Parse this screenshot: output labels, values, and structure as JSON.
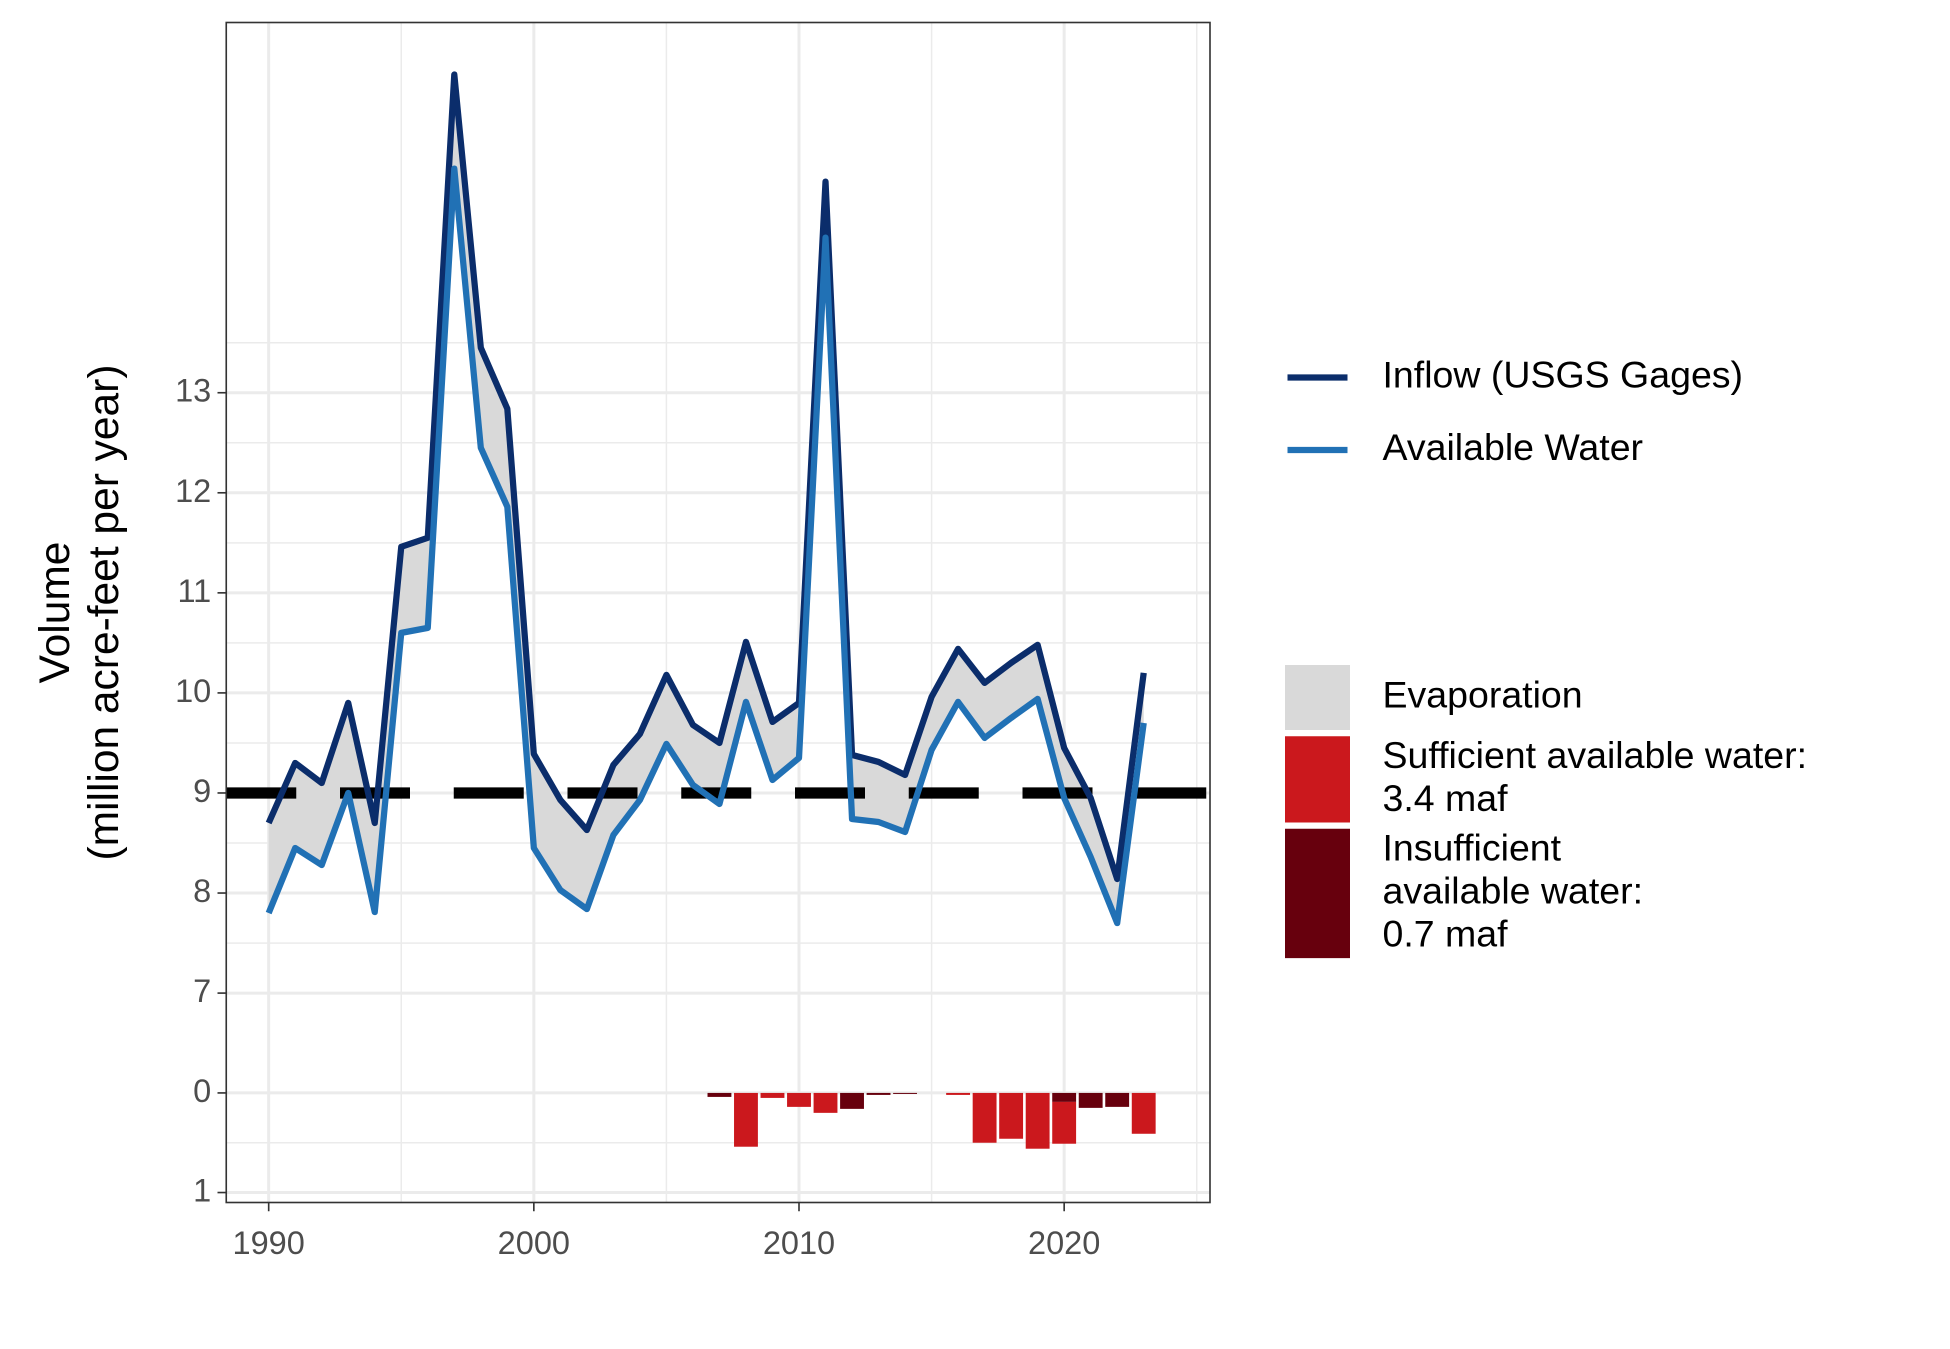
{
  "chart_data": [
    {
      "type": "line",
      "y_label": "Volume\n(million acre-feet per year)",
      "x": [
        1990,
        1991,
        1992,
        1993,
        1994,
        1995,
        1996,
        1997,
        1998,
        1999,
        2000,
        2001,
        2002,
        2003,
        2004,
        2005,
        2006,
        2007,
        2008,
        2009,
        2010,
        2011,
        2012,
        2013,
        2014,
        2015,
        2016,
        2017,
        2018,
        2019,
        2020,
        2021,
        2022,
        2023
      ],
      "series": [
        {
          "name": "Inflow (USGS Gages)",
          "color": "#0b2d6b",
          "values": [
            8.7,
            9.3,
            9.1,
            9.9,
            8.7,
            11.46,
            11.55,
            16.18,
            13.45,
            12.84,
            9.39,
            8.93,
            8.63,
            9.28,
            9.59,
            10.18,
            9.68,
            9.5,
            10.51,
            9.71,
            9.9,
            15.11,
            9.38,
            9.31,
            9.18,
            9.96,
            10.44,
            10.1,
            10.3,
            10.48,
            9.45,
            8.95,
            8.14,
            10.2
          ]
        },
        {
          "name": "Available Water",
          "color": "#2171b5",
          "values": [
            7.8,
            8.45,
            8.28,
            9.0,
            7.81,
            10.6,
            10.65,
            15.24,
            12.45,
            11.86,
            8.45,
            8.03,
            7.84,
            8.58,
            8.93,
            9.49,
            9.08,
            8.89,
            9.91,
            9.13,
            9.35,
            14.55,
            8.74,
            8.71,
            8.61,
            9.43,
            9.91,
            9.55,
            9.75,
            9.94,
            8.95,
            8.36,
            7.7,
            9.7
          ]
        }
      ],
      "band": {
        "name": "Evaporation",
        "color": "#d9d9d9"
      },
      "hline": {
        "value": 9,
        "color": "#000000"
      },
      "xlim": [
        1988.4,
        2025.5
      ],
      "ylim": [
        6.5,
        16.7
      ],
      "yticks": [
        7,
        8,
        9,
        10,
        11,
        12,
        13
      ],
      "yminor": [
        7.5,
        8.5,
        9.5,
        10.5,
        11.5,
        12.5,
        13.5
      ],
      "grid": true
    },
    {
      "type": "bar",
      "x": [
        2007,
        2008,
        2009,
        2010,
        2011,
        2012,
        2013,
        2014,
        2016,
        2017,
        2018,
        2019,
        2020,
        2021,
        2022,
        2023
      ],
      "series": [
        {
          "name": "Sufficient available water:\n3.4 maf",
          "color": "#cb181d",
          "values": [
            0,
            0.54,
            0.05,
            0.14,
            0.2,
            0,
            0,
            0,
            0.02,
            0.5,
            0.46,
            0.56,
            0.42,
            0,
            0,
            0.41
          ]
        },
        {
          "name": "Insufficient\navailable water:\n0.7 maf",
          "color": "#67000d",
          "values": [
            0.04,
            0,
            0,
            0,
            0,
            0.16,
            0.02,
            0.01,
            0,
            0,
            0,
            0,
            0.09,
            0.15,
            0.14,
            0
          ]
        }
      ],
      "stacked": true,
      "xlim": [
        1988.4,
        2025.5
      ],
      "xticks": [
        1990,
        2000,
        2010,
        2020
      ],
      "xminor": [
        1995,
        2005,
        2015,
        2025
      ],
      "ylim": [
        1.1,
        -0.5
      ],
      "yticks": [
        1,
        0
      ],
      "yminor": [
        0.5
      ],
      "grid": true
    }
  ]
}
